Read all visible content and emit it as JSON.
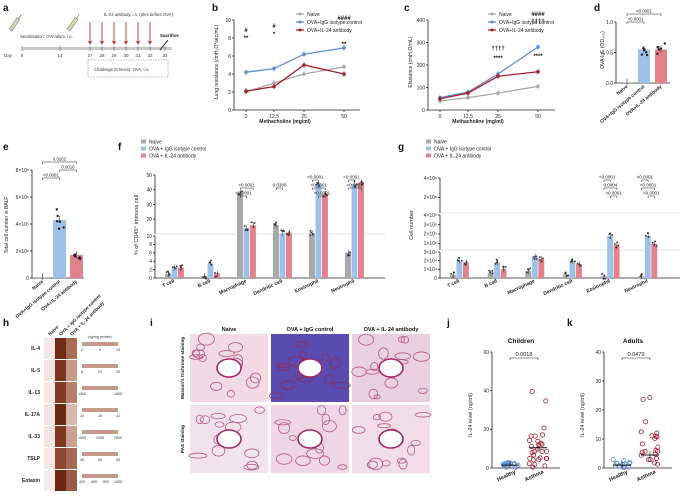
{
  "colors": {
    "naive": "#a8a8a8",
    "igg": "#5b8fd0",
    "il24": "#a3202c",
    "igg_bar": "#9ec1ea",
    "il24_bar": "#e3828a"
  },
  "panel_a": {
    "label": "a",
    "sensitization": "Sensitization: OVA/alum, i.p.",
    "il24_admin": "IL-24 antibody, i.n. (2hrs before OVA)",
    "challenge": "Challenge (5 times): OVA, i.n.",
    "sacrifice": "Sacrifice",
    "day_label": "Day",
    "days": [
      "0",
      "14",
      "27",
      "28",
      "29",
      "30",
      "31",
      "32",
      "33"
    ]
  },
  "legend": {
    "naive": "Naive",
    "igg_isotype": "OVA+IgG isotype control",
    "il24_ab": "OVA+IL-24 antibody",
    "igg_isotype_sp": "OVA + IgG isotype control",
    "il24_ab_sp": "OVA + IL-24 antibody"
  },
  "chart_data": [
    {
      "panel": "b",
      "type": "line",
      "ylabel": "Lung resistance (cmH₂O*sec/mL)",
      "xlabel": "Methacholine (mg/ml)",
      "x": [
        "0",
        "12.5",
        "25",
        "50"
      ],
      "ylim": [
        0,
        10
      ],
      "yticks": [
        "0",
        "2",
        "4",
        "6",
        "8",
        "10"
      ],
      "series": [
        {
          "name": "Naive",
          "values": [
            2.0,
            3.0,
            4.0,
            4.8
          ]
        },
        {
          "name": "OVA+IgG isotype control",
          "values": [
            4.2,
            4.6,
            6.2,
            6.9
          ]
        },
        {
          "name": "OVA+IL-24 antibody",
          "values": [
            2.1,
            2.6,
            5.0,
            4.0
          ]
        }
      ],
      "annotations": [
        "#",
        "**",
        "#",
        "*",
        "####",
        "**"
      ]
    },
    {
      "panel": "c",
      "type": "line",
      "ylabel": "Elastance (cmH₂O/mL)",
      "xlabel": "Methacholine (mg/ml)",
      "x": [
        "0",
        "12.5",
        "25",
        "50"
      ],
      "ylim": [
        0,
        400
      ],
      "yticks": [
        "0",
        "100",
        "200",
        "300",
        "400"
      ],
      "series": [
        {
          "name": "Naive",
          "values": [
            40,
            55,
            75,
            105
          ]
        },
        {
          "name": "OVA+IgG isotype control",
          "values": [
            55,
            80,
            160,
            280
          ]
        },
        {
          "name": "OVA+IL-24 antibody",
          "values": [
            50,
            75,
            150,
            170
          ]
        }
      ],
      "annotations": [
        "####",
        "††††",
        "****",
        "††††",
        "****"
      ]
    },
    {
      "panel": "d",
      "type": "bar",
      "ylabel": "OVA-IgE (OD₄₅₀)",
      "categories": [
        "Naive",
        "OVA+IgG isotype control",
        "OVA+IL-24 antibody"
      ],
      "values": [
        0.01,
        0.55,
        0.55
      ],
      "ylim": [
        0,
        1.0
      ],
      "yticks": [
        "0.0",
        "0.5",
        "1.0"
      ],
      "pvalues": [
        "<0.0001",
        "<0.0001"
      ]
    },
    {
      "panel": "e",
      "type": "bar",
      "ylabel": "Total cell number in BALF",
      "categories": [
        "Naive",
        "OVA+IgG isotype control",
        "OVA+IL-24 antibody"
      ],
      "values": [
        0.05,
        4.3,
        1.7
      ],
      "ylim": [
        0,
        8
      ],
      "yticks": [
        "0",
        "2×10⁵",
        "4×10⁵",
        "6×10⁵",
        "8×10⁵"
      ],
      "pvalues": [
        "0.0262",
        "0.0018",
        "<0.0001"
      ]
    },
    {
      "panel": "f",
      "type": "bar",
      "ylabel": "% of CD45⁺ immune cell",
      "categories": [
        "T cell",
        "B cell",
        "Macrophage",
        "Dendritic cell",
        "Eosinophil",
        "Neutrophil"
      ],
      "series": [
        {
          "name": "Naive",
          "values": [
            1.0,
            0.5,
            38,
            16,
            10.5,
            6.0
          ]
        },
        {
          "name": "OVA + IgG isotype control",
          "values": [
            2.5,
            3.5,
            14,
            10.5,
            44,
            44
          ]
        },
        {
          "name": "OVA + IL-24 antibody",
          "values": [
            2.5,
            1.0,
            16,
            11,
            37,
            45
          ]
        }
      ],
      "yticks": [
        "0",
        "2",
        "4",
        "6",
        "8",
        "10",
        "20",
        "30",
        "40",
        "50"
      ],
      "pvalues": [
        "<0.0001",
        "<0.0001",
        "0.0380",
        "<0.0001",
        "<0.0001",
        "<0.0001",
        "<0.0001",
        "<0.0001"
      ]
    },
    {
      "panel": "g",
      "type": "bar",
      "ylabel": "Cell number",
      "categories": [
        "T cell",
        "B cell",
        "Macrophage",
        "Dendritic cell",
        "Eosinophil",
        "Neutrophil"
      ],
      "series": [
        {
          "name": "Naive",
          "values": [
            4000,
            6000,
            8000,
            4000,
            2000,
            2000
          ]
        },
        {
          "name": "OVA + IgG isotype control",
          "values": [
            20000,
            18000,
            25000,
            20000,
            180000,
            180000
          ]
        },
        {
          "name": "OVA + IL-24 antibody",
          "values": [
            18000,
            10000,
            22000,
            16000,
            85000,
            95000
          ]
        }
      ],
      "yticks": [
        "0",
        "1×10⁴",
        "2×10⁴",
        "3×10⁴",
        "1×10⁵",
        "2×10⁵",
        "3×10⁵",
        "4×10⁵",
        "2×10⁶",
        "4×10⁶"
      ],
      "pvalues": [
        "<0.0001",
        "0.0004",
        "<0.0001",
        "<0.0001",
        "<0.0001",
        "<0.0001"
      ]
    },
    {
      "panel": "h",
      "type": "heatmap",
      "rows": [
        "IL-4",
        "IL-5",
        "IL-13",
        "IL-17A",
        "IL-33",
        "TSLP",
        "Eotaxin"
      ],
      "columns": [
        "Naive",
        "OVA + IgG isotype control",
        "OVA + IL-24 antibody"
      ],
      "unit": "pg/mg protein",
      "scales": [
        [
          "2",
          "6",
          "10"
        ],
        [
          "8",
          "20",
          "35"
        ],
        [
          "1400",
          "1800"
        ],
        [
          "20",
          "26",
          "33"
        ],
        [
          "1500",
          "2000",
          "2500"
        ],
        [
          "48",
          "56",
          "66"
        ],
        [
          "400",
          "600",
          "800",
          "1000"
        ]
      ]
    },
    {
      "panel": "j",
      "type": "scatter",
      "title": "Children",
      "ylabel": "IL-24 level (ng/ml)",
      "categories": [
        "Healthy",
        "Asthma"
      ],
      "ylim": [
        0,
        60
      ],
      "yticks": [
        "0",
        "20",
        "40",
        "60"
      ],
      "means": [
        1.5,
        10.5
      ],
      "pvalue": "0.0018"
    },
    {
      "panel": "k",
      "type": "scatter",
      "title": "Adults",
      "ylabel": "IL-24 level (ng/ml)",
      "categories": [
        "Healthy",
        "Asthma"
      ],
      "ylim": [
        0,
        40
      ],
      "yticks": [
        "0",
        "10",
        "20",
        "30",
        "40"
      ],
      "means": [
        1.0,
        4.5
      ],
      "pvalue": "0.0479"
    }
  ],
  "panel_i": {
    "label": "i",
    "columns": [
      "Naive",
      "OVA + IgG control",
      "OVA + IL-24 antibody"
    ],
    "rows": [
      "Masson's trichrome staining",
      "PAS staining"
    ]
  }
}
